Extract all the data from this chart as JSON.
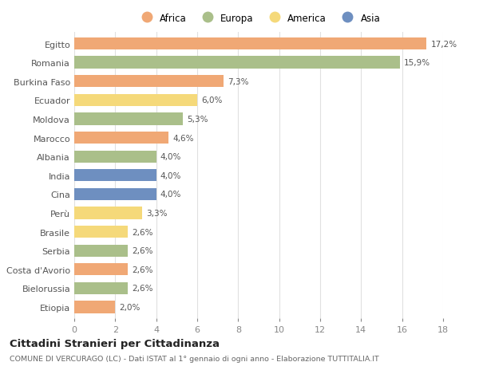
{
  "countries": [
    "Egitto",
    "Romania",
    "Burkina Faso",
    "Ecuador",
    "Moldova",
    "Marocco",
    "Albania",
    "India",
    "Cina",
    "Perù",
    "Brasile",
    "Serbia",
    "Costa d'Avorio",
    "Bielorussia",
    "Etiopia"
  ],
  "values": [
    17.2,
    15.9,
    7.3,
    6.0,
    5.3,
    4.6,
    4.0,
    4.0,
    4.0,
    3.3,
    2.6,
    2.6,
    2.6,
    2.6,
    2.0
  ],
  "continents": [
    "Africa",
    "Europa",
    "Africa",
    "America",
    "Europa",
    "Africa",
    "Europa",
    "Asia",
    "Asia",
    "America",
    "America",
    "Europa",
    "Africa",
    "Europa",
    "Africa"
  ],
  "labels": [
    "17,2%",
    "15,9%",
    "7,3%",
    "6,0%",
    "5,3%",
    "4,6%",
    "4,0%",
    "4,0%",
    "4,0%",
    "3,3%",
    "2,6%",
    "2,6%",
    "2,6%",
    "2,6%",
    "2,0%"
  ],
  "continent_colors": {
    "Africa": "#F0A875",
    "Europa": "#AABF8A",
    "America": "#F5D97A",
    "Asia": "#6E8FC0"
  },
  "legend_order": [
    "Africa",
    "Europa",
    "America",
    "Asia"
  ],
  "title": "Cittadini Stranieri per Cittadinanza",
  "subtitle": "COMUNE DI VERCURAGO (LC) - Dati ISTAT al 1° gennaio di ogni anno - Elaborazione TUTTITALIA.IT",
  "xlim": [
    0,
    18
  ],
  "xticks": [
    0,
    2,
    4,
    6,
    8,
    10,
    12,
    14,
    16,
    18
  ],
  "background_color": "#ffffff",
  "grid_color": "#e0e0e0",
  "bar_height": 0.65
}
